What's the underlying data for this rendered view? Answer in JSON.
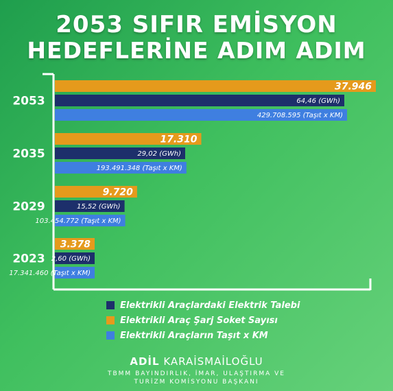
{
  "header": {
    "line1": "2053 SIFIR EMİSYON",
    "line2": "HEDEFLERİNE ADIM ADIM"
  },
  "colors": {
    "electricity_demand": "#1d2f6b",
    "charging_sockets": "#e59a1c",
    "vehicle_km": "#3f7fe0",
    "axis": "#ffffff"
  },
  "legend": [
    {
      "label": "Elektrikli Araçlardaki Elektrik Talebi",
      "color": "#1d2f6b"
    },
    {
      "label": "Elektrikli Araç Şarj Soket Sayısı",
      "color": "#e59a1c"
    },
    {
      "label": "Elektrikli Araçların Taşıt x KM",
      "color": "#3f7fe0"
    }
  ],
  "chart_data": {
    "type": "bar",
    "orientation": "horizontal",
    "categories": [
      "2053",
      "2035",
      "2029",
      "2023"
    ],
    "series": [
      {
        "name": "Elektrikli Araç Şarj Soket Sayısı",
        "values": [
          37946,
          17310,
          9720,
          3378
        ],
        "labels": [
          "37.946",
          "17.310",
          "9.720",
          "3.378"
        ]
      },
      {
        "name": "Elektrikli Araçlardaki Elektrik Talebi",
        "unit": "GWh",
        "values": [
          64.46,
          29.02,
          15.52,
          2.6
        ],
        "labels": [
          "64,46 (GWh)",
          "29,02 (GWh)",
          "15,52 (GWh)",
          "2,60 (GWh)"
        ]
      },
      {
        "name": "Elektrikli Araçların Taşıt x KM",
        "unit": "Taşıt x KM",
        "values": [
          429708595,
          193491348,
          103454772,
          17341460
        ],
        "labels": [
          "429.708.595 (Taşıt x KM)",
          "193.491.348 (Taşıt x KM)",
          "103.454.772 (Taşıt x KM)",
          "17.341.460 (Taşıt x KM)"
        ]
      }
    ],
    "grid": false,
    "legend_position": "bottom"
  },
  "signature": {
    "first_name": "ADİL",
    "last_name": "KARAİSMAİLOĞLU",
    "title_line1": "TBMM BAYINDIRLIK, İMAR, ULAŞTIRMA VE",
    "title_line2": "TURİZM KOMİSYONU BAŞKANI"
  }
}
